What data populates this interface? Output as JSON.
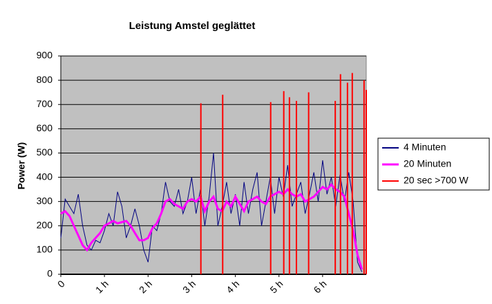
{
  "chart_data": {
    "type": "line",
    "title": "Leistung Amstel geglättet",
    "y_label": "Power (W)",
    "xlim": [
      0,
      7
    ],
    "ylim": [
      0,
      900
    ],
    "xticks": [
      {
        "value": 0,
        "label": "0"
      },
      {
        "value": 1,
        "label": "1 h"
      },
      {
        "value": 2,
        "label": "2 h"
      },
      {
        "value": 3,
        "label": "3 h"
      },
      {
        "value": 4,
        "label": "4 h"
      },
      {
        "value": 5,
        "label": "5 h"
      },
      {
        "value": 6,
        "label": "6 h"
      }
    ],
    "yticks": [
      0,
      100,
      200,
      300,
      400,
      500,
      600,
      700,
      800,
      900
    ],
    "grid": true,
    "legend": "right",
    "series": [
      {
        "name": "4 Minuten",
        "color": "#000080",
        "type": "line",
        "x": [
          0,
          0.1,
          0.2,
          0.3,
          0.4,
          0.5,
          0.6,
          0.7,
          0.8,
          0.9,
          1,
          1.1,
          1.2,
          1.3,
          1.4,
          1.5,
          1.6,
          1.7,
          1.8,
          1.9,
          2,
          2.1,
          2.2,
          2.3,
          2.4,
          2.5,
          2.6,
          2.7,
          2.8,
          2.9,
          3,
          3.1,
          3.2,
          3.3,
          3.4,
          3.5,
          3.6,
          3.7,
          3.8,
          3.9,
          4,
          4.1,
          4.2,
          4.3,
          4.4,
          4.5,
          4.6,
          4.7,
          4.8,
          4.9,
          5,
          5.1,
          5.2,
          5.3,
          5.4,
          5.5,
          5.6,
          5.7,
          5.8,
          5.9,
          6,
          6.1,
          6.2,
          6.3,
          6.4,
          6.5,
          6.6,
          6.7,
          6.8,
          6.9
        ],
        "values": [
          150,
          310,
          280,
          250,
          330,
          200,
          120,
          100,
          140,
          130,
          180,
          250,
          200,
          340,
          280,
          150,
          200,
          270,
          200,
          100,
          50,
          200,
          180,
          250,
          380,
          300,
          280,
          350,
          250,
          300,
          400,
          250,
          350,
          200,
          320,
          500,
          200,
          280,
          380,
          250,
          330,
          200,
          380,
          250,
          350,
          420,
          200,
          300,
          400,
          250,
          400,
          320,
          450,
          280,
          330,
          380,
          250,
          330,
          420,
          300,
          470,
          330,
          400,
          280,
          410,
          300,
          420,
          300,
          50,
          10
        ]
      },
      {
        "name": "20 Minuten",
        "color": "#ff00ff",
        "type": "line",
        "x": [
          0,
          0.1,
          0.2,
          0.3,
          0.4,
          0.5,
          0.6,
          0.7,
          0.8,
          0.9,
          1,
          1.1,
          1.2,
          1.3,
          1.4,
          1.5,
          1.6,
          1.7,
          1.8,
          1.9,
          2,
          2.1,
          2.2,
          2.3,
          2.4,
          2.5,
          2.6,
          2.7,
          2.8,
          2.9,
          3,
          3.1,
          3.2,
          3.3,
          3.4,
          3.5,
          3.6,
          3.7,
          3.8,
          3.9,
          4,
          4.1,
          4.2,
          4.3,
          4.4,
          4.5,
          4.6,
          4.7,
          4.8,
          4.9,
          5,
          5.1,
          5.2,
          5.3,
          5.4,
          5.5,
          5.6,
          5.7,
          5.8,
          5.9,
          6,
          6.1,
          6.2,
          6.3,
          6.4,
          6.5,
          6.6,
          6.7,
          6.8,
          6.9
        ],
        "values": [
          250,
          260,
          240,
          200,
          160,
          120,
          100,
          130,
          150,
          170,
          200,
          210,
          220,
          210,
          215,
          220,
          200,
          170,
          140,
          140,
          150,
          190,
          210,
          250,
          300,
          310,
          290,
          280,
          270,
          300,
          310,
          300,
          320,
          260,
          300,
          320,
          270,
          260,
          300,
          280,
          320,
          290,
          260,
          300,
          310,
          320,
          300,
          290,
          320,
          330,
          340,
          330,
          350,
          330,
          320,
          330,
          300,
          310,
          320,
          340,
          360,
          350,
          370,
          350,
          340,
          320,
          250,
          180,
          80,
          20
        ]
      },
      {
        "name": "20 sec >700 W",
        "color": "#ff0000",
        "type": "bar",
        "x": [
          3.21,
          3.71,
          4.81,
          5.11,
          5.24,
          5.4,
          5.68,
          6.29,
          6.41,
          6.57,
          6.68,
          6.95,
          7
        ],
        "values": [
          705,
          740,
          710,
          755,
          730,
          715,
          750,
          715,
          825,
          790,
          830,
          800,
          760
        ]
      }
    ]
  }
}
